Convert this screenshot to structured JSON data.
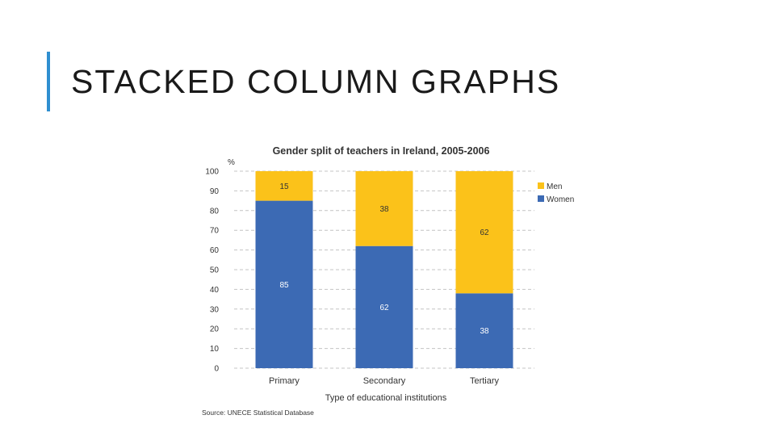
{
  "slide": {
    "title": "STACKED COLUMN GRAPHS",
    "accent_color": "#2f8fd0"
  },
  "chart_data": {
    "type": "bar",
    "stacked": true,
    "title": "Gender split of teachers in Ireland, 2005-2006",
    "xlabel": "Type of educational institutions",
    "ylabel": "%",
    "ylim": [
      0,
      100
    ],
    "yticks": [
      0,
      10,
      20,
      30,
      40,
      50,
      60,
      70,
      80,
      90,
      100
    ],
    "grid": true,
    "legend_position": "right",
    "categories": [
      "Primary",
      "Secondary",
      "Tertiary"
    ],
    "series": [
      {
        "name": "Women",
        "color": "#3c6ab4",
        "values": [
          85,
          62,
          38
        ]
      },
      {
        "name": "Men",
        "color": "#fbc21a",
        "values": [
          15,
          38,
          62
        ]
      }
    ],
    "legend_order": [
      "Men",
      "Women"
    ],
    "source": "Source: UNECE Statistical Database"
  }
}
